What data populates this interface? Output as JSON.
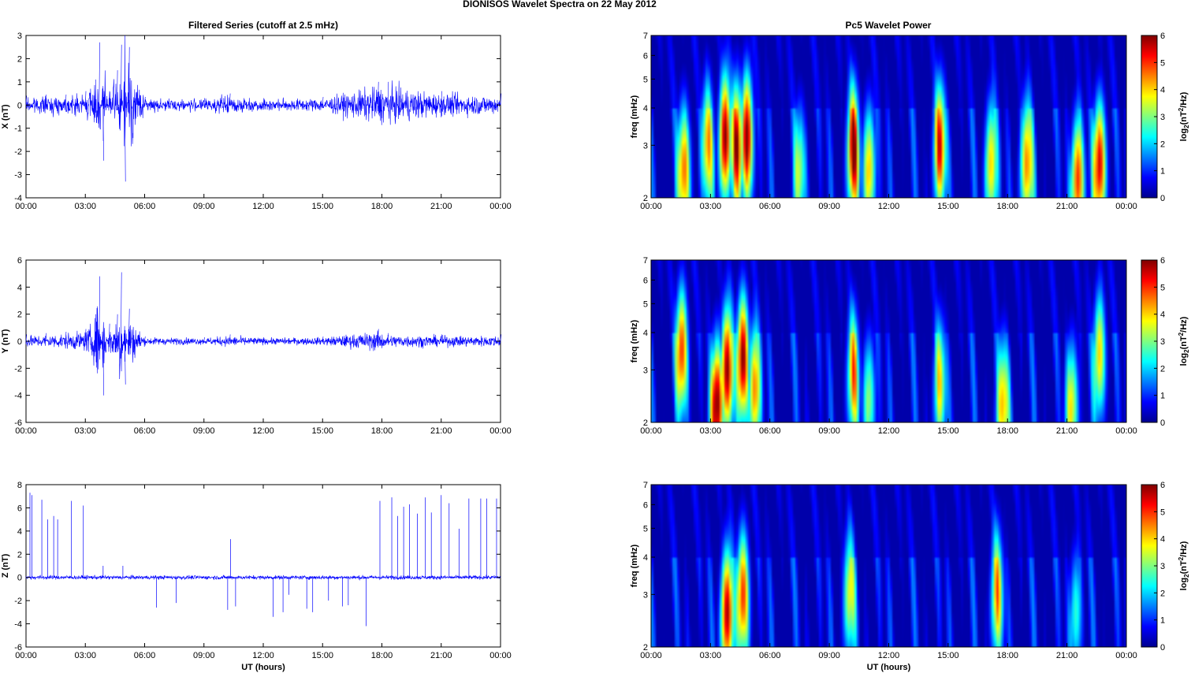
{
  "figure_title": "DIONISOS Wavelet Spectra on 22 May      2012",
  "left_title": "Filtered Series (cutoff at 2.5 mHz)",
  "right_title": "Pc5 Wavelet Power",
  "xlabel": "UT (hours)",
  "colors": {
    "series_line": "#0000ff",
    "axes": "#000000"
  },
  "chart_data": [
    {
      "type": "line",
      "name": "X",
      "ylabel": "X (nT)",
      "xlim": [
        "00:00",
        "00:00"
      ],
      "ylim": [
        -4,
        3
      ],
      "xticks": [
        "00:00",
        "03:00",
        "06:00",
        "09:00",
        "12:00",
        "15:00",
        "18:00",
        "21:00",
        "00:00"
      ],
      "yticks": [
        "-4",
        "-3",
        "-2",
        "-1",
        "0",
        "1",
        "2",
        "3"
      ],
      "series": [
        {
          "x_hours": [
            0,
            1,
            2,
            3,
            3.5,
            3.7,
            3.9,
            4.2,
            4.6,
            4.8,
            5.0,
            5.2,
            6,
            9,
            10.3,
            12,
            15,
            17.8,
            18.3,
            21,
            24
          ],
          "envelope_nT": [
            0.4,
            0.45,
            0.45,
            0.6,
            1.1,
            2.7,
            -2.4,
            0.6,
            1.5,
            2.6,
            -3.3,
            2.5,
            0.35,
            0.3,
            0.5,
            0.3,
            0.35,
            1.0,
            1.0,
            0.6,
            0.5
          ]
        }
      ]
    },
    {
      "type": "line",
      "name": "Y",
      "ylabel": "Y (nT)",
      "xlim": [
        "00:00",
        "00:00"
      ],
      "ylim": [
        -6,
        6
      ],
      "xticks": [
        "00:00",
        "03:00",
        "06:00",
        "09:00",
        "12:00",
        "15:00",
        "18:00",
        "21:00",
        "00:00"
      ],
      "yticks": [
        "-6",
        "-4",
        "-2",
        "0",
        "2",
        "4",
        "6"
      ],
      "series": [
        {
          "x_hours": [
            0,
            1,
            2,
            3,
            3.5,
            3.7,
            3.9,
            4.2,
            4.6,
            4.8,
            5.0,
            5.2,
            6,
            9,
            10.3,
            12,
            15,
            17.8,
            18.3,
            21,
            24
          ],
          "envelope_nT": [
            0.5,
            0.6,
            0.7,
            0.9,
            2.0,
            4.8,
            -4.0,
            1.3,
            2.0,
            5.1,
            -3.2,
            2.4,
            0.35,
            0.3,
            0.5,
            0.3,
            0.35,
            0.9,
            0.6,
            0.5,
            0.5
          ]
        }
      ]
    },
    {
      "type": "line",
      "name": "Z",
      "ylabel": "Z (nT)",
      "xlim": [
        "00:00",
        "00:00"
      ],
      "ylim": [
        -6,
        8
      ],
      "xticks": [
        "00:00",
        "03:00",
        "06:00",
        "09:00",
        "12:00",
        "15:00",
        "18:00",
        "21:00",
        "00:00"
      ],
      "yticks": [
        "-6",
        "-4",
        "-2",
        "0",
        "2",
        "4",
        "6",
        "8"
      ],
      "series": [
        {
          "baseline_nT": 0,
          "spike_hours": [
            0.2,
            0.3,
            0.8,
            1.1,
            1.4,
            1.6,
            2.3,
            2.9,
            3.9,
            4.9,
            6.6,
            7.6,
            10.2,
            10.35,
            10.6,
            12.5,
            13.0,
            13.3,
            14.2,
            14.5,
            15.3,
            16.0,
            16.3,
            17.2,
            17.9,
            18.5,
            18.8,
            19.1,
            19.4,
            19.8,
            20.2,
            20.5,
            21.0,
            21.4,
            21.9,
            22.4,
            23.0,
            23.3,
            23.8
          ],
          "spike_nT": [
            7.3,
            7.1,
            6.7,
            5.0,
            5.3,
            5.0,
            6.6,
            6.2,
            1.0,
            1.0,
            -2.6,
            -2.2,
            -2.8,
            3.3,
            -2.5,
            -3.4,
            -3.0,
            -1.5,
            -2.7,
            -3.0,
            -2.0,
            -2.5,
            -2.4,
            -4.2,
            6.6,
            6.9,
            5.3,
            6.1,
            6.3,
            5.5,
            6.9,
            5.6,
            7.1,
            6.4,
            4.2,
            6.8,
            6.8,
            6.8,
            6.8
          ]
        }
      ]
    },
    {
      "type": "heatmap",
      "name": "X wavelet power",
      "ylabel": "freq (mHz)",
      "yscale": "log",
      "ylim": [
        2,
        7
      ],
      "yticks": [
        "2",
        "3",
        "4",
        "5",
        "6",
        "7"
      ],
      "colorbar": {
        "label": "log2(nT2/Hz)",
        "range": [
          0,
          6
        ],
        "ticks": [
          "0",
          "1",
          "2",
          "3",
          "4",
          "5",
          "6"
        ],
        "colormap": "jet"
      },
      "hot_spots": [
        {
          "t": 1.6,
          "f": 2.5,
          "level": 4.5
        },
        {
          "t": 2.8,
          "f": 3.0,
          "level": 4.0
        },
        {
          "t": 3.7,
          "f": 3.2,
          "level": 6.0
        },
        {
          "t": 4.3,
          "f": 3.0,
          "level": 5.2
        },
        {
          "t": 4.8,
          "f": 3.2,
          "level": 6.0
        },
        {
          "t": 7.5,
          "f": 2.5,
          "level": 3.0
        },
        {
          "t": 10.2,
          "f": 2.9,
          "level": 5.5
        },
        {
          "t": 11.0,
          "f": 2.5,
          "level": 4.0
        },
        {
          "t": 14.6,
          "f": 3.0,
          "level": 5.0
        },
        {
          "t": 17.2,
          "f": 2.6,
          "level": 4.0
        },
        {
          "t": 19.0,
          "f": 2.6,
          "level": 4.5
        },
        {
          "t": 21.6,
          "f": 2.3,
          "level": 5.0
        },
        {
          "t": 22.7,
          "f": 2.6,
          "level": 5.5
        }
      ]
    },
    {
      "type": "heatmap",
      "name": "Y wavelet power",
      "ylabel": "freq (mHz)",
      "yscale": "log",
      "ylim": [
        2,
        7
      ],
      "yticks": [
        "2",
        "3",
        "4",
        "5",
        "6",
        "7"
      ],
      "colorbar": {
        "label": "log2(nT2/Hz)",
        "range": [
          0,
          6
        ],
        "ticks": [
          "0",
          "1",
          "2",
          "3",
          "4",
          "5",
          "6"
        ],
        "colormap": "jet"
      },
      "hot_spots": [
        {
          "t": 1.5,
          "f": 3.5,
          "level": 5.0
        },
        {
          "t": 3.3,
          "f": 2.3,
          "level": 6.0
        },
        {
          "t": 3.8,
          "f": 3.0,
          "level": 6.0
        },
        {
          "t": 4.6,
          "f": 3.3,
          "level": 6.0
        },
        {
          "t": 5.2,
          "f": 2.6,
          "level": 4.5
        },
        {
          "t": 10.2,
          "f": 2.9,
          "level": 4.0
        },
        {
          "t": 11.0,
          "f": 2.4,
          "level": 3.0
        },
        {
          "t": 14.6,
          "f": 2.7,
          "level": 3.5
        },
        {
          "t": 17.8,
          "f": 2.3,
          "level": 4.0
        },
        {
          "t": 21.3,
          "f": 2.3,
          "level": 3.5
        },
        {
          "t": 22.7,
          "f": 3.4,
          "level": 4.0
        }
      ]
    },
    {
      "type": "heatmap",
      "name": "Z wavelet power",
      "ylabel": "freq (mHz)",
      "yscale": "log",
      "ylim": [
        2,
        7
      ],
      "yticks": [
        "2",
        "3",
        "4",
        "5",
        "6",
        "7"
      ],
      "colorbar": {
        "label": "log2(nT2/Hz)",
        "range": [
          0,
          6
        ],
        "ticks": [
          "0",
          "1",
          "2",
          "3",
          "4",
          "5",
          "6"
        ],
        "colormap": "jet"
      },
      "hot_spots": [
        {
          "t": 3.8,
          "f": 2.6,
          "level": 5.8
        },
        {
          "t": 4.6,
          "f": 3.0,
          "level": 5.0
        },
        {
          "t": 10.0,
          "f": 3.0,
          "level": 3.5
        },
        {
          "t": 17.5,
          "f": 3.0,
          "level": 4.0
        },
        {
          "t": 21.5,
          "f": 2.6,
          "level": 2.5
        }
      ]
    }
  ]
}
